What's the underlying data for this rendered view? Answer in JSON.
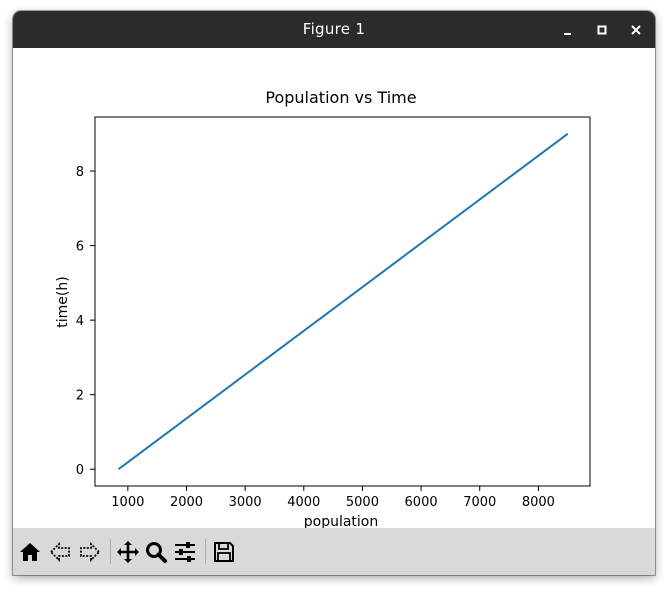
{
  "window": {
    "title": "Figure 1",
    "controls": [
      "minimize",
      "maximize",
      "close"
    ]
  },
  "toolbar": {
    "buttons": [
      {
        "name": "home-button",
        "icon": "home-icon"
      },
      {
        "name": "back-button",
        "icon": "back-arrow-icon"
      },
      {
        "name": "forward-button",
        "icon": "forward-arrow-icon"
      },
      {
        "name": "pan-button",
        "icon": "move-icon"
      },
      {
        "name": "zoom-button",
        "icon": "magnifier-icon"
      },
      {
        "name": "configure-subplots-button",
        "icon": "sliders-icon"
      },
      {
        "name": "save-button",
        "icon": "floppy-disk-icon"
      }
    ]
  },
  "chart_data": {
    "type": "line",
    "title": "Population vs Time",
    "xlabel": "population",
    "ylabel": "time(h)",
    "xlim": [
      440,
      8880
    ],
    "ylim": [
      -0.45,
      9.45
    ],
    "xticks": [
      1000,
      2000,
      3000,
      4000,
      5000,
      6000,
      7000,
      8000
    ],
    "yticks": [
      0,
      2,
      4,
      6,
      8
    ],
    "grid": false,
    "series": [
      {
        "color": "#1f77b4",
        "x": [
          840,
          8500
        ],
        "y": [
          0,
          9
        ]
      }
    ]
  }
}
